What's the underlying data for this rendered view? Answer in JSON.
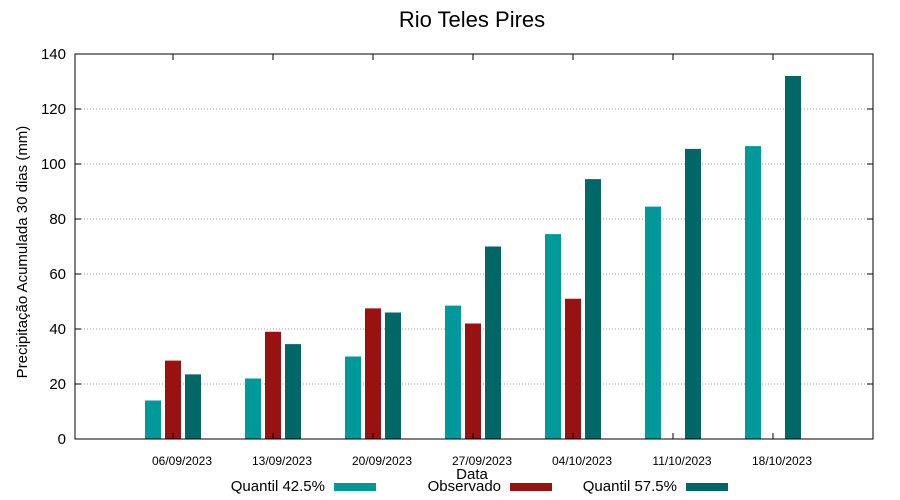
{
  "chart_data": {
    "type": "bar",
    "title": "Rio Teles Pires",
    "xlabel": "Data",
    "ylabel": "Precipitação Acumulada 30 dias (mm)",
    "ylim": [
      0,
      140
    ],
    "yticks": [
      0,
      20,
      40,
      60,
      80,
      100,
      120,
      140
    ],
    "grid": true,
    "legend_position": "bottom",
    "categories": [
      "06/09/2023",
      "13/09/2023",
      "20/09/2023",
      "27/09/2023",
      "04/10/2023",
      "11/10/2023",
      "18/10/2023"
    ],
    "series": [
      {
        "name": "Quantil 42.5%",
        "color": "#009999",
        "values": [
          14,
          22,
          30,
          48.5,
          74.5,
          84.5,
          106.5
        ]
      },
      {
        "name": "Observado",
        "color": "#991111",
        "values": [
          28.5,
          39,
          47.5,
          42,
          51,
          null,
          null
        ]
      },
      {
        "name": "Quantil 57.5%",
        "color": "#006666",
        "values": [
          23.5,
          34.5,
          46,
          70,
          94.5,
          105.5,
          132
        ]
      }
    ]
  }
}
